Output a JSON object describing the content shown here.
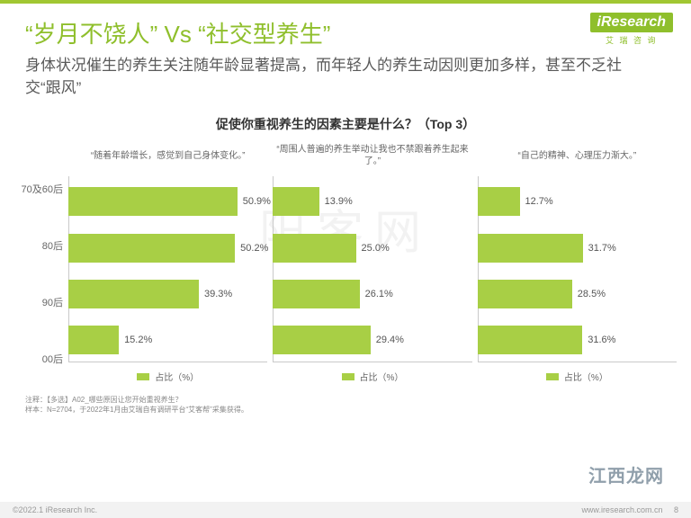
{
  "brand": {
    "logo_text": "iResearch",
    "logo_sub": "艾 瑞 咨 询"
  },
  "title": "“岁月不饶人”  Vs “社交型养生”",
  "subtitle": "身体状况催生的养生关注随年龄显著提高，而年轻人的养生动因则更加多样，甚至不乏社交“跟风”",
  "chart": {
    "title": "促使你重视养生的因素主要是什么？（Top 3）",
    "categories": [
      "70及60后",
      "80后",
      "90后",
      "00后"
    ],
    "x_max": 60,
    "bar_color": "#a8cf45",
    "axis_color": "#c9c9c9",
    "panel_title_fontsize": 10,
    "value_fontsize": 11,
    "panels": [
      {
        "label": "“随着年龄增长，感觉到自己身体变化。”",
        "values": [
          50.9,
          50.2,
          39.3,
          15.2
        ]
      },
      {
        "label": "“周围人普遍的养生举动让我也不禁跟着养生起来了。”",
        "values": [
          13.9,
          25.0,
          26.1,
          29.4
        ]
      },
      {
        "label": "“自己的精神、心理压力渐大。”",
        "values": [
          12.7,
          31.7,
          28.5,
          31.6
        ]
      }
    ],
    "legend": "占比（%）"
  },
  "watermark_center": "阳客网",
  "watermark_corner": "江西龙网",
  "footnote_line1": "注释：【多选】A02_哪些原因让您开始重视养生？",
  "footnote_line2": "样本：N=2704，于2022年1月由艾瑞自有调研平台“艾客帮”采集获得。",
  "footer": {
    "left": "©2022.1 iResearch Inc.",
    "right_url": "www.iresearch.com.cn",
    "right_page": "8"
  }
}
